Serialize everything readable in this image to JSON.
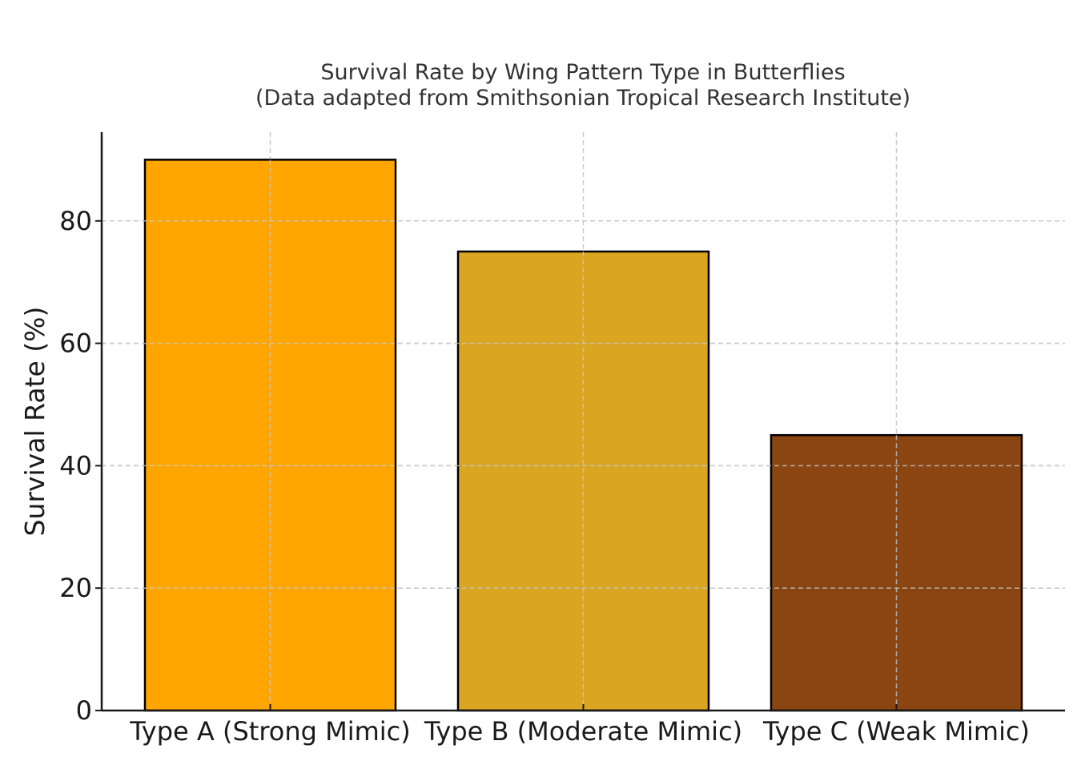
{
  "chart_data": {
    "type": "bar",
    "title": "Survival Rate by Wing Pattern Type in Butterflies",
    "subtitle": "(Data adapted from Smithsonian Tropical Research Institute)",
    "xlabel": "",
    "ylabel": "Survival Rate (%)",
    "categories": [
      "Type A (Strong Mimic)",
      "Type B (Moderate Mimic)",
      "Type C (Weak Mimic)"
    ],
    "values": [
      90,
      75,
      45
    ],
    "colors": [
      "#FFA500",
      "#DAA520",
      "#8B4513"
    ],
    "edge_color": "#000000",
    "ylim": [
      0,
      94.5
    ],
    "yticks": [
      0,
      20,
      40,
      60,
      80
    ],
    "grid": true,
    "grid_style": "dashed"
  }
}
